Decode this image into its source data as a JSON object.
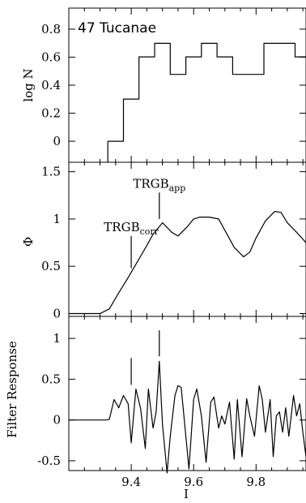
{
  "chart_data": [
    {
      "type": "line",
      "panel": "top",
      "title": "47 Tucanae",
      "ylabel": "log N",
      "xlim": [
        9.2,
        9.96
      ],
      "ylim": [
        -0.15,
        0.95
      ],
      "yticks": [
        0,
        0.2,
        0.4,
        0.6,
        0.8
      ],
      "ytick_labels": [
        "0",
        "0.2",
        "0.4",
        "0.6",
        "0.8"
      ],
      "series": [
        {
          "style": "step",
          "x": [
            9.325,
            9.375,
            9.375,
            9.425,
            9.425,
            9.475,
            9.475,
            9.525,
            9.525,
            9.575,
            9.575,
            9.625,
            9.625,
            9.675,
            9.675,
            9.725,
            9.725,
            9.825,
            9.825,
            9.925,
            9.925,
            9.96
          ],
          "y": [
            0,
            0,
            0.301,
            0.301,
            0.602,
            0.602,
            0.699,
            0.699,
            0.477,
            0.477,
            0.602,
            0.602,
            0.699,
            0.699,
            0.602,
            0.602,
            0.477,
            0.477,
            0.699,
            0.699,
            0.602,
            0.602
          ]
        }
      ],
      "left_edge": {
        "x": 9.325,
        "y_from": -0.15,
        "y_to": 0
      }
    },
    {
      "type": "line",
      "panel": "middle",
      "ylabel": "Φ",
      "xlim": [
        9.2,
        9.96
      ],
      "ylim": [
        -0.03,
        1.6
      ],
      "yticks": [
        0,
        0.5,
        1,
        1.5
      ],
      "ytick_labels": [
        "0",
        "0.5",
        "1",
        "1.5"
      ],
      "series": [
        {
          "x": [
            9.2,
            9.3,
            9.33,
            9.36,
            9.39,
            9.42,
            9.45,
            9.47,
            9.5,
            9.53,
            9.55,
            9.58,
            9.6,
            9.62,
            9.65,
            9.68,
            9.7,
            9.73,
            9.76,
            9.78,
            9.8,
            9.83,
            9.86,
            9.88,
            9.9,
            9.93,
            9.96
          ],
          "y": [
            0,
            0,
            0.05,
            0.22,
            0.38,
            0.55,
            0.72,
            0.84,
            0.96,
            0.86,
            0.82,
            0.92,
            1.0,
            1.02,
            1.02,
            1.0,
            0.88,
            0.7,
            0.6,
            0.65,
            0.8,
            0.98,
            1.08,
            1.07,
            0.96,
            0.86,
            0.75
          ]
        }
      ],
      "markers": [
        {
          "x": 9.4,
          "label_main": "TRGB",
          "label_sub": "corr",
          "y_from": 0.48,
          "y_to": 0.82
        },
        {
          "x": 9.49,
          "label_main": "TRGB",
          "label_sub": "app",
          "y_from": 1.0,
          "y_to": 1.28
        }
      ]
    },
    {
      "type": "line",
      "panel": "bottom",
      "ylabel": "Filter Response",
      "xlabel": "I",
      "xlim": [
        9.2,
        9.96
      ],
      "ylim": [
        -0.62,
        1.27
      ],
      "yticks": [
        -0.5,
        0,
        0.5,
        1
      ],
      "ytick_labels": [
        "-0.5",
        "0",
        "0.5",
        "1"
      ],
      "xticks": [
        9.4,
        9.6,
        9.8
      ],
      "xtick_labels": [
        "9.4",
        "9.6",
        "9.8"
      ],
      "series": [
        {
          "x": [
            9.2,
            9.32,
            9.33,
            9.345,
            9.36,
            9.375,
            9.39,
            9.4,
            9.415,
            9.43,
            9.445,
            9.455,
            9.47,
            9.48,
            9.49,
            9.5,
            9.515,
            9.525,
            9.54,
            9.55,
            9.56,
            9.575,
            9.585,
            9.6,
            9.61,
            9.625,
            9.64,
            9.655,
            9.665,
            9.68,
            9.69,
            9.7,
            9.715,
            9.73,
            9.74,
            9.755,
            9.77,
            9.78,
            9.795,
            9.81,
            9.82,
            9.83,
            9.845,
            9.855,
            9.865,
            9.875,
            9.885,
            9.895,
            9.905,
            9.92,
            9.93,
            9.94,
            9.95,
            9.96
          ],
          "y": [
            0,
            0,
            0.01,
            0.25,
            0.15,
            0.3,
            0.2,
            -0.28,
            0.38,
            0.14,
            -0.35,
            0.38,
            -0.1,
            0.1,
            0.72,
            -0.05,
            -0.65,
            -0.2,
            0.3,
            0.42,
            0.4,
            -0.2,
            -0.6,
            0.25,
            0.38,
            0.05,
            -0.52,
            0.22,
            0.28,
            -0.1,
            0.05,
            -0.05,
            0.22,
            -0.48,
            0.25,
            -0.45,
            0.26,
            0.05,
            -0.2,
            0.42,
            0.25,
            -0.15,
            0.25,
            -0.45,
            0.05,
            0.1,
            -0.15,
            0.15,
            -0.2,
            0.3,
            0.05,
            0.2,
            -0.15,
            -0.45
          ]
        }
      ],
      "markers": [
        {
          "x": 9.4,
          "y_from": 0.43,
          "y_to": 0.76
        },
        {
          "x": 9.49,
          "y_from": 0.78,
          "y_to": 1.1
        }
      ]
    }
  ]
}
